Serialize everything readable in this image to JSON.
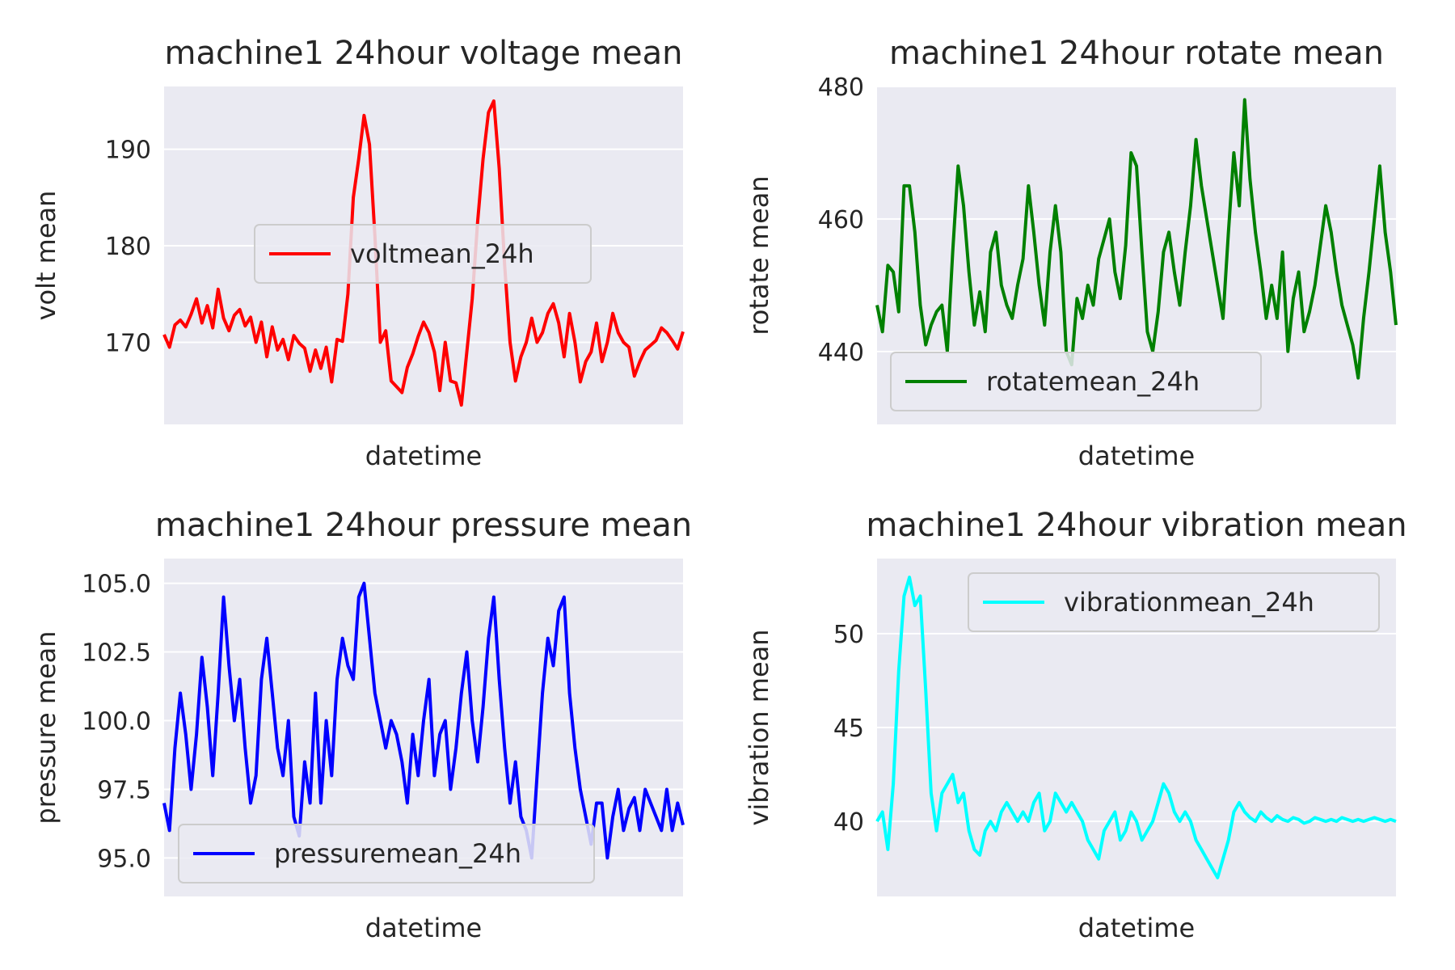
{
  "chart_data": [
    {
      "type": "line",
      "title": "machine1 24hour voltage mean",
      "xlabel": "datetime",
      "ylabel": "volt mean",
      "ylim": [
        161.5,
        196.5
      ],
      "yticks": [
        170,
        180,
        190
      ],
      "grid": true,
      "legend": "center-right",
      "series": [
        {
          "name": "voltmean_24h",
          "color": "#ff0000",
          "x": [
            0,
            5,
            10,
            15,
            20,
            25,
            30,
            35,
            40,
            45,
            50,
            55,
            60,
            65,
            70,
            75,
            80,
            85,
            90,
            95,
            100,
            105,
            110,
            115,
            120,
            125,
            130,
            135,
            140,
            145,
            150,
            155,
            160,
            165,
            170,
            175,
            180,
            185,
            190,
            195,
            200,
            205,
            210,
            215,
            220,
            225,
            230,
            235,
            240,
            245,
            250,
            255,
            260,
            265,
            270,
            275,
            280,
            285,
            290,
            295,
            300,
            305,
            310,
            315,
            320,
            325,
            330,
            335,
            340,
            345,
            350,
            355,
            360,
            365,
            370,
            375,
            380,
            385,
            390,
            395,
            400,
            405,
            410,
            415,
            420,
            425,
            430,
            435,
            440,
            445,
            450,
            455,
            460,
            465,
            470,
            475,
            480
          ],
          "y": [
            170.8,
            169.5,
            171.8,
            172.3,
            171.6,
            172.9,
            174.5,
            172.0,
            173.8,
            171.5,
            175.5,
            172.5,
            171.2,
            172.8,
            173.4,
            171.7,
            172.6,
            170.0,
            172.1,
            168.5,
            171.6,
            169.2,
            170.3,
            168.2,
            170.7,
            169.9,
            169.4,
            167.0,
            169.2,
            167.3,
            169.5,
            165.9,
            170.3,
            170.1,
            175.0,
            185.0,
            189.0,
            193.5,
            190.5,
            181.0,
            170.0,
            171.2,
            166.0,
            165.4,
            164.8,
            167.4,
            168.8,
            170.6,
            172.1,
            171.0,
            169.0,
            165.0,
            170.0,
            166.0,
            165.8,
            163.5,
            169.0,
            174.5,
            182.5,
            189.0,
            193.8,
            195.0,
            188.0,
            178.0,
            170.0,
            166.0,
            168.5,
            170.0,
            172.5,
            170.0,
            171.0,
            173.0,
            174.0,
            172.0,
            168.5,
            173.0,
            170.0,
            165.9,
            168.0,
            169.0,
            172.0,
            168.0,
            170.0,
            173.0,
            171.0,
            170.0,
            169.5,
            166.5,
            168.0,
            169.2,
            169.7,
            170.2,
            171.5,
            171.0,
            170.2,
            169.3,
            171.1
          ]
        }
      ]
    },
    {
      "type": "line",
      "title": "machine1 24hour rotate mean",
      "xlabel": "datetime",
      "ylabel": "rotate mean",
      "ylim": [
        429,
        480
      ],
      "yticks": [
        440,
        460,
        480
      ],
      "grid": true,
      "legend": "lower-left",
      "series": [
        {
          "name": "rotatemean_24h",
          "color": "#008000",
          "x": [
            0,
            5,
            10,
            15,
            20,
            25,
            30,
            35,
            40,
            45,
            50,
            55,
            60,
            65,
            70,
            75,
            80,
            85,
            90,
            95,
            100,
            105,
            110,
            115,
            120,
            125,
            130,
            135,
            140,
            145,
            150,
            155,
            160,
            165,
            170,
            175,
            180,
            185,
            190,
            195,
            200,
            205,
            210,
            215,
            220,
            225,
            230,
            235,
            240,
            245,
            250,
            255,
            260,
            265,
            270,
            275,
            280,
            285,
            290,
            295,
            300,
            305,
            310,
            315,
            320,
            325,
            330,
            335,
            340,
            345,
            350,
            355,
            360,
            365,
            370,
            375,
            380,
            385,
            390,
            395,
            400,
            405,
            410,
            415,
            420,
            425,
            430,
            435,
            440,
            445,
            450,
            455,
            460,
            465,
            470,
            475,
            480
          ],
          "y": [
            447,
            443,
            453,
            452,
            446,
            465,
            465,
            458,
            447,
            441,
            444,
            446,
            447,
            440,
            455,
            468,
            462,
            452,
            444,
            449,
            443,
            455,
            458,
            450,
            447,
            445,
            450,
            454,
            465,
            458,
            450,
            444,
            455,
            462,
            455,
            440,
            438,
            448,
            445,
            450,
            447,
            454,
            457,
            460,
            452,
            448,
            456,
            470,
            468,
            455,
            443,
            440,
            446,
            455,
            458,
            452,
            447,
            455,
            462,
            472,
            465,
            460,
            455,
            450,
            445,
            458,
            470,
            462,
            478,
            466,
            458,
            452,
            445,
            450,
            445,
            455,
            440,
            448,
            452,
            443,
            446,
            450,
            456,
            462,
            458,
            452,
            447,
            444,
            441,
            436,
            445,
            452,
            460,
            468,
            458,
            452,
            444
          ]
        }
      ]
    },
    {
      "type": "line",
      "title": "machine1 24hour pressure mean",
      "xlabel": "datetime",
      "ylabel": "pressure mean",
      "ylim": [
        93.6,
        105.9
      ],
      "yticks": [
        95.0,
        97.5,
        100.0,
        102.5,
        105.0
      ],
      "ytick_labels": [
        "95.0",
        "97.5",
        "100.0",
        "102.5",
        "105.0"
      ],
      "grid": true,
      "legend": "lower-center",
      "series": [
        {
          "name": "pressuremean_24h",
          "color": "#0000ff",
          "x": [
            0,
            5,
            10,
            15,
            20,
            25,
            30,
            35,
            40,
            45,
            50,
            55,
            60,
            65,
            70,
            75,
            80,
            85,
            90,
            95,
            100,
            105,
            110,
            115,
            120,
            125,
            130,
            135,
            140,
            145,
            150,
            155,
            160,
            165,
            170,
            175,
            180,
            185,
            190,
            195,
            200,
            205,
            210,
            215,
            220,
            225,
            230,
            235,
            240,
            245,
            250,
            255,
            260,
            265,
            270,
            275,
            280,
            285,
            290,
            295,
            300,
            305,
            310,
            315,
            320,
            325,
            330,
            335,
            340,
            345,
            350,
            355,
            360,
            365,
            370,
            375,
            380,
            385,
            390,
            395,
            400,
            405,
            410,
            415,
            420,
            425,
            430,
            435,
            440,
            445,
            450,
            455,
            460,
            465,
            470,
            475,
            480
          ],
          "y": [
            97.0,
            96.0,
            99.0,
            101.0,
            99.5,
            97.5,
            99.5,
            102.3,
            100.5,
            98.0,
            101.0,
            104.5,
            102.0,
            100.0,
            101.5,
            99.0,
            97.0,
            98.0,
            101.5,
            103.0,
            101.0,
            99.0,
            98.0,
            100.0,
            96.5,
            95.8,
            98.5,
            97.0,
            101.0,
            97.0,
            100.0,
            98.0,
            101.5,
            103.0,
            102.0,
            101.5,
            104.5,
            105.0,
            103.0,
            101.0,
            100.0,
            99.0,
            100.0,
            99.5,
            98.5,
            97.0,
            99.5,
            98.0,
            100.0,
            101.5,
            98.0,
            99.5,
            100.0,
            97.5,
            99.0,
            101.0,
            102.5,
            100.0,
            98.5,
            100.5,
            103.0,
            104.5,
            101.5,
            99.0,
            97.0,
            98.5,
            96.5,
            96.0,
            95.0,
            98.0,
            101.0,
            103.0,
            102.0,
            104.0,
            104.5,
            101.0,
            99.0,
            97.5,
            96.5,
            95.5,
            97.0,
            97.0,
            95.0,
            96.5,
            97.5,
            96.0,
            96.8,
            97.2,
            96.0,
            97.5,
            97.0,
            96.5,
            96.0,
            97.5,
            96.0,
            97.0,
            96.2
          ]
        }
      ]
    },
    {
      "type": "line",
      "title": "machine1 24hour vibration mean",
      "xlabel": "datetime",
      "ylabel": "vibration mean",
      "ylim": [
        36,
        54
      ],
      "yticks": [
        40,
        45,
        50
      ],
      "grid": true,
      "legend": "upper-right",
      "series": [
        {
          "name": "vibrationmean_24h",
          "color": "#00ffff",
          "x": [
            0,
            5,
            10,
            15,
            20,
            25,
            30,
            35,
            40,
            45,
            50,
            55,
            60,
            65,
            70,
            75,
            80,
            85,
            90,
            95,
            100,
            105,
            110,
            115,
            120,
            125,
            130,
            135,
            140,
            145,
            150,
            155,
            160,
            165,
            170,
            175,
            180,
            185,
            190,
            195,
            200,
            205,
            210,
            215,
            220,
            225,
            230,
            235,
            240,
            245,
            250,
            255,
            260,
            265,
            270,
            275,
            280,
            285,
            290,
            295,
            300,
            305,
            310,
            315,
            320,
            325,
            330,
            335,
            340,
            345,
            350,
            355,
            360,
            365,
            370,
            375,
            380,
            385,
            390,
            395,
            400,
            405,
            410,
            415,
            420,
            425,
            430,
            435,
            440,
            445,
            450,
            455,
            460,
            465,
            470,
            475,
            480
          ],
          "y": [
            40.0,
            40.5,
            38.5,
            42.0,
            48.0,
            52.0,
            53.0,
            51.5,
            52.0,
            47.0,
            41.5,
            39.5,
            41.5,
            42.0,
            42.5,
            41.0,
            41.5,
            39.5,
            38.5,
            38.2,
            39.5,
            40.0,
            39.5,
            40.5,
            41.0,
            40.5,
            40.0,
            40.5,
            40.0,
            41.0,
            41.5,
            39.5,
            40.0,
            41.5,
            41.0,
            40.5,
            41.0,
            40.5,
            40.0,
            39.0,
            38.5,
            38.0,
            39.5,
            40.0,
            40.5,
            39.0,
            39.5,
            40.5,
            40.0,
            39.0,
            39.5,
            40.0,
            41.0,
            42.0,
            41.5,
            40.5,
            40.0,
            40.5,
            40.0,
            39.0,
            38.5,
            38.0,
            37.5,
            37.0,
            38.0,
            39.0,
            40.5,
            41.0,
            40.5,
            40.2,
            40.0,
            40.5,
            40.2,
            40.0,
            40.3,
            40.1,
            40.0,
            40.2,
            40.1,
            39.9,
            40.0,
            40.2,
            40.1,
            40.0,
            40.1,
            40.0,
            40.2,
            40.1,
            40.0,
            40.1,
            40.0,
            40.1,
            40.2,
            40.1,
            40.0,
            40.1,
            40.0
          ]
        }
      ]
    }
  ]
}
